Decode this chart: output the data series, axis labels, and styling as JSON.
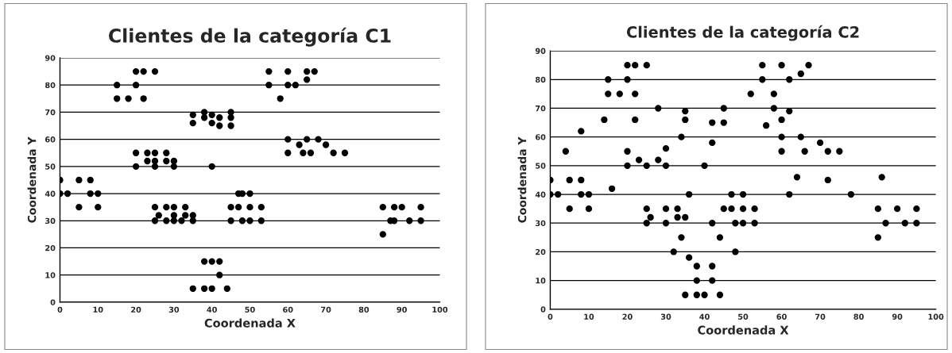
{
  "chart_data": [
    {
      "type": "scatter",
      "title": "Clientes de la categoría C1",
      "xlabel": "Coordenada X",
      "ylabel": "Coordenada Y",
      "color": "#000000",
      "marker": "circle",
      "grid": "y",
      "xlim": [
        0,
        100
      ],
      "ylim": [
        0,
        90
      ],
      "xticks": [
        0,
        10,
        20,
        30,
        40,
        50,
        60,
        70,
        80,
        90,
        100
      ],
      "yticks": [
        0,
        10,
        20,
        30,
        40,
        50,
        60,
        70,
        80,
        90
      ],
      "x": [
        0,
        0,
        2,
        5,
        5,
        8,
        8,
        10,
        10,
        15,
        15,
        18,
        20,
        20,
        22,
        22,
        25,
        20,
        20,
        23,
        23,
        25,
        25,
        25,
        28,
        28,
        30,
        30,
        40,
        35,
        35,
        38,
        38,
        40,
        40,
        42,
        42,
        45,
        45,
        45,
        25,
        25,
        26,
        28,
        28,
        30,
        30,
        30,
        32,
        33,
        33,
        35,
        35,
        38,
        40,
        42,
        42,
        35,
        38,
        40,
        44,
        47,
        48,
        50,
        45,
        47,
        50,
        53,
        45,
        48,
        50,
        53,
        55,
        55,
        58,
        60,
        60,
        62,
        65,
        65,
        67,
        60,
        60,
        63,
        65,
        64,
        66,
        68,
        70,
        72,
        75,
        85,
        85,
        88,
        90,
        87,
        88,
        92,
        95,
        95
      ],
      "values": [
        45,
        40,
        40,
        45,
        35,
        45,
        40,
        40,
        35,
        80,
        75,
        75,
        85,
        80,
        85,
        75,
        85,
        55,
        50,
        55,
        52,
        55,
        52,
        50,
        55,
        52,
        52,
        50,
        50,
        69,
        66,
        70,
        68,
        69,
        66,
        68,
        65,
        70,
        68,
        65,
        35,
        30,
        32,
        35,
        30,
        35,
        32,
        30,
        30,
        35,
        32,
        32,
        30,
        15,
        15,
        15,
        10,
        5,
        5,
        5,
        5,
        40,
        40,
        40,
        35,
        35,
        35,
        35,
        30,
        30,
        30,
        30,
        85,
        80,
        75,
        85,
        80,
        80,
        85,
        82,
        85,
        60,
        55,
        58,
        60,
        55,
        55,
        60,
        58,
        55,
        55,
        35,
        25,
        35,
        35,
        30,
        30,
        30,
        35,
        30
      ]
    },
    {
      "type": "scatter",
      "title": "Clientes de la categoría C2",
      "xlabel": "Coordenada X",
      "ylabel": "Coordenada Y",
      "color": "#000000",
      "marker": "circle",
      "grid": "y",
      "xlim": [
        0,
        100
      ],
      "ylim": [
        0,
        90
      ],
      "xticks": [
        0,
        10,
        20,
        30,
        40,
        50,
        60,
        70,
        80,
        90,
        100
      ],
      "yticks": [
        0,
        10,
        20,
        30,
        40,
        50,
        60,
        70,
        80,
        90
      ],
      "x": [
        0,
        0,
        2,
        4,
        5,
        5,
        8,
        8,
        8,
        10,
        10,
        14,
        15,
        15,
        16,
        18,
        20,
        20,
        20,
        20,
        22,
        22,
        22,
        23,
        25,
        25,
        25,
        25,
        26,
        28,
        28,
        30,
        30,
        30,
        30,
        32,
        33,
        33,
        34,
        34,
        35,
        35,
        35,
        35,
        36,
        36,
        38,
        38,
        38,
        40,
        40,
        42,
        42,
        42,
        42,
        42,
        44,
        44,
        45,
        45,
        45,
        47,
        47,
        48,
        48,
        50,
        50,
        50,
        52,
        53,
        53,
        55,
        55,
        56,
        58,
        58,
        60,
        60,
        60,
        60,
        62,
        62,
        62,
        64,
        65,
        65,
        66,
        67,
        70,
        72,
        72,
        75,
        78,
        85,
        85,
        86,
        87,
        90,
        92,
        95,
        95
      ],
      "values": [
        45,
        40,
        40,
        55,
        45,
        35,
        62,
        45,
        40,
        40,
        35,
        66,
        80,
        75,
        42,
        75,
        85,
        80,
        55,
        50,
        85,
        75,
        66,
        52,
        85,
        50,
        35,
        30,
        32,
        70,
        52,
        56,
        50,
        35,
        30,
        20,
        35,
        32,
        60,
        25,
        69,
        66,
        32,
        5,
        40,
        18,
        15,
        10,
        5,
        50,
        5,
        65,
        58,
        30,
        15,
        10,
        25,
        5,
        70,
        65,
        35,
        40,
        35,
        30,
        20,
        40,
        35,
        30,
        75,
        35,
        30,
        85,
        80,
        64,
        75,
        70,
        85,
        66,
        60,
        55,
        80,
        69,
        40,
        46,
        82,
        60,
        55,
        85,
        58,
        55,
        45,
        55,
        40,
        35,
        25,
        46,
        30,
        35,
        30,
        35,
        30
      ]
    }
  ]
}
